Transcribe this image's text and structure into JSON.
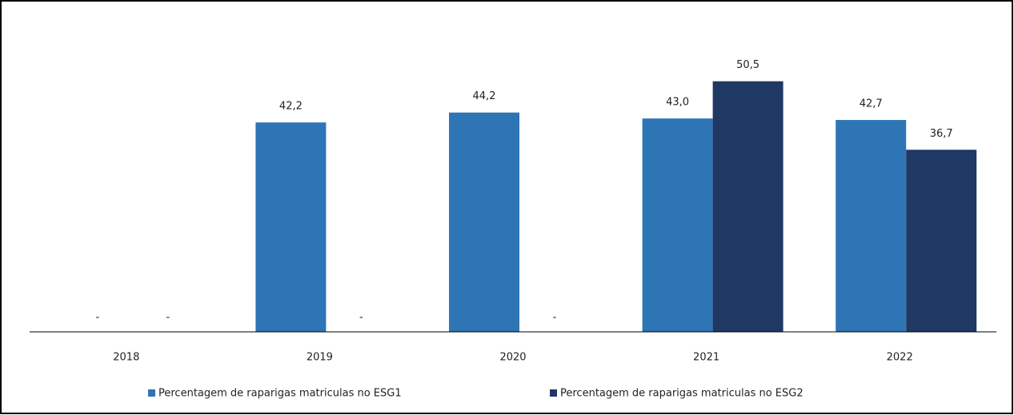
{
  "chart_data": {
    "type": "bar",
    "categories": [
      "2018",
      "2019",
      "2020",
      "2021",
      "2022"
    ],
    "series": [
      {
        "name": "Percentagem de raparigas matriculas no ESG1",
        "color": "#2e75b6",
        "values": [
          null,
          42.2,
          44.2,
          43.0,
          42.7
        ],
        "value_labels": [
          "-",
          "42,2",
          "44,2",
          "43,0",
          "42,7"
        ]
      },
      {
        "name": "Percentagem de raparigas matriculas no ESG2",
        "color": "#1f3864",
        "values": [
          null,
          null,
          null,
          50.5,
          36.7
        ],
        "value_labels": [
          "-",
          "-",
          "-",
          "50,5",
          "36,7"
        ]
      }
    ],
    "ylim": [
      0,
      58.5
    ],
    "legend": "bottom"
  }
}
